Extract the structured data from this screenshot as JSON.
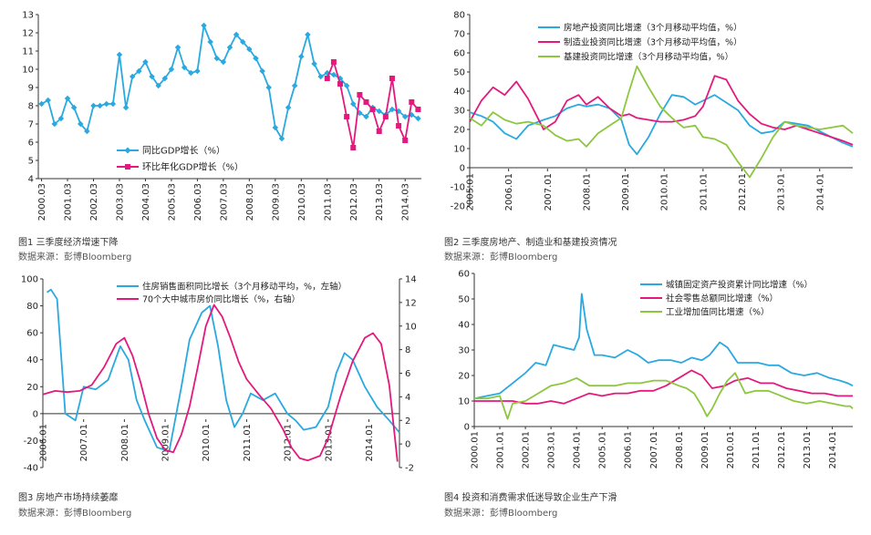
{
  "captions": {
    "c1": "图1 三季度经济增速下降",
    "c2": "图2 三季度房地产、制造业和基建投资情况",
    "c3": "图3 房地产市场持续萎靡",
    "c4": "图4 投资和消费需求低迷导致企业生产下滑"
  },
  "source_label": "数据来源：彭博Bloomberg",
  "chart_data": [
    {
      "id": "c1",
      "type": "line",
      "ylim": [
        4,
        13
      ],
      "yticks": [
        4,
        5,
        6,
        7,
        8,
        9,
        10,
        11,
        12,
        13
      ],
      "x_tick_labels": [
        "2000.03",
        "2001.03",
        "2002.03",
        "2003.03",
        "2004.03",
        "2005.03",
        "2006.03",
        "2007.03",
        "2008.03",
        "2009.03",
        "2010.03",
        "2011.03",
        "2012.03",
        "2013.03",
        "2014.03"
      ],
      "series": [
        {
          "name": "同比GDP增长（%）",
          "color": "#29A9E0",
          "marker": "diamond",
          "values": [
            8.1,
            8.3,
            7.0,
            7.3,
            8.4,
            7.9,
            7.0,
            6.6,
            8.0,
            8.0,
            8.1,
            8.1,
            10.8,
            7.9,
            9.6,
            9.9,
            10.4,
            9.6,
            9.1,
            9.5,
            10.0,
            11.2,
            10.1,
            9.8,
            9.9,
            12.4,
            11.5,
            10.6,
            10.4,
            11.2,
            11.9,
            11.5,
            11.1,
            10.6,
            9.9,
            9.0,
            6.8,
            6.2,
            7.9,
            9.1,
            10.7,
            11.9,
            10.3,
            9.6,
            9.8,
            9.7,
            9.5,
            9.1,
            8.1,
            7.6,
            7.4,
            7.9,
            7.7,
            7.5,
            7.8,
            7.7,
            7.4,
            7.5,
            7.3
          ]
        },
        {
          "name": "环比年化GDP增长（%）",
          "color": "#E3197D",
          "marker": "square",
          "start_index": 44,
          "values": [
            9.5,
            10.4,
            9.2,
            7.4,
            5.7,
            8.6,
            8.2,
            7.8,
            6.6,
            7.4,
            9.5,
            6.9,
            6.1,
            8.2,
            7.8
          ]
        }
      ]
    },
    {
      "id": "c2",
      "type": "line",
      "ylim": [
        -20,
        80
      ],
      "yticks": [
        -20,
        -10,
        0,
        10,
        20,
        30,
        40,
        50,
        60,
        70,
        80
      ],
      "x_tick_labels": [
        "2005.01",
        "2006.01",
        "2007.01",
        "2008.01",
        "2009.01",
        "2010.01",
        "2011.01",
        "2012.01",
        "2013.01",
        "2014.01"
      ],
      "x_range": [
        2005.0,
        2014.85
      ],
      "series": [
        {
          "name": "房地产投资同比增速（3个月移动平均值，%）",
          "color": "#29A9E0",
          "x": [
            2005.0,
            2005.3,
            2005.6,
            2005.9,
            2006.2,
            2006.5,
            2006.9,
            2007.2,
            2007.5,
            2007.8,
            2008.0,
            2008.3,
            2008.6,
            2008.9,
            2009.1,
            2009.3,
            2009.6,
            2009.9,
            2010.2,
            2010.5,
            2010.8,
            2011.0,
            2011.3,
            2011.6,
            2011.9,
            2012.2,
            2012.5,
            2012.8,
            2013.1,
            2013.4,
            2013.7,
            2014.0,
            2014.3,
            2014.6,
            2014.85
          ],
          "values": [
            29,
            27,
            24,
            18,
            15,
            22,
            25,
            27,
            31,
            33,
            32,
            33,
            31,
            25,
            12,
            7,
            16,
            28,
            38,
            37,
            33,
            35,
            38,
            34,
            30,
            22,
            18,
            19,
            24,
            23,
            22,
            19,
            16,
            13,
            11
          ]
        },
        {
          "name": "制造业投资同比增速（3个月移动平均值，%）",
          "color": "#E3197D",
          "x": [
            2005.0,
            2005.3,
            2005.6,
            2005.9,
            2006.2,
            2006.5,
            2006.9,
            2007.2,
            2007.5,
            2007.8,
            2008.0,
            2008.3,
            2008.6,
            2008.9,
            2009.1,
            2009.3,
            2009.6,
            2009.9,
            2010.2,
            2010.5,
            2010.8,
            2011.0,
            2011.3,
            2011.6,
            2011.9,
            2012.2,
            2012.5,
            2012.8,
            2013.1,
            2013.4,
            2013.7,
            2014.0,
            2014.3,
            2014.6,
            2014.85
          ],
          "values": [
            24,
            35,
            42,
            38,
            45,
            36,
            20,
            24,
            35,
            38,
            33,
            37,
            31,
            27,
            28,
            26,
            25,
            24,
            24,
            25,
            27,
            32,
            48,
            46,
            35,
            28,
            23,
            21,
            20,
            22,
            20,
            18,
            16,
            14,
            12
          ]
        },
        {
          "name": "基建投资同比增速（3个月移动平均值，%）",
          "color": "#8DC63F",
          "x": [
            2005.0,
            2005.3,
            2005.6,
            2005.9,
            2006.2,
            2006.5,
            2006.9,
            2007.2,
            2007.5,
            2007.8,
            2008.0,
            2008.3,
            2008.6,
            2008.9,
            2009.1,
            2009.3,
            2009.6,
            2009.9,
            2010.2,
            2010.5,
            2010.8,
            2011.0,
            2011.3,
            2011.6,
            2011.9,
            2012.2,
            2012.5,
            2012.8,
            2013.1,
            2013.4,
            2013.7,
            2014.0,
            2014.3,
            2014.6,
            2014.85
          ],
          "values": [
            26,
            22,
            29,
            25,
            23,
            24,
            22,
            17,
            14,
            15,
            11,
            18,
            22,
            26,
            40,
            53,
            42,
            32,
            26,
            21,
            22,
            16,
            15,
            12,
            3,
            -5,
            5,
            16,
            24,
            22,
            21,
            20,
            21,
            22,
            18
          ]
        }
      ]
    },
    {
      "id": "c3",
      "type": "line",
      "ylim_left": [
        -40,
        100
      ],
      "ylim_right": [
        -2,
        14
      ],
      "yticks_left": [
        -40,
        -20,
        0,
        20,
        40,
        60,
        80,
        100
      ],
      "yticks_right": [
        -2,
        0,
        2,
        4,
        6,
        8,
        10,
        12,
        14
      ],
      "x_tick_labels": [
        "2006.01",
        "2007.01",
        "2008.01",
        "2009.01",
        "2010.01",
        "2011.01",
        "2012.01",
        "2013.01",
        "2014.01"
      ],
      "x_range": [
        2006.0,
        2014.75
      ],
      "series": [
        {
          "name": "住房销售面积同比增长（3个月移动平均，%，左轴）",
          "color": "#29A9E0",
          "axis": "left",
          "x": [
            2006.1,
            2006.2,
            2006.35,
            2006.55,
            2006.8,
            2007.0,
            2007.3,
            2007.6,
            2007.9,
            2008.1,
            2008.3,
            2008.5,
            2008.8,
            2009.1,
            2009.4,
            2009.6,
            2009.9,
            2010.1,
            2010.3,
            2010.5,
            2010.7,
            2010.9,
            2011.1,
            2011.4,
            2011.7,
            2012.0,
            2012.2,
            2012.4,
            2012.7,
            2013.0,
            2013.2,
            2013.4,
            2013.6,
            2013.9,
            2014.2,
            2014.5,
            2014.75
          ],
          "values": [
            90,
            92,
            85,
            0,
            -5,
            20,
            18,
            25,
            50,
            40,
            10,
            -5,
            -25,
            -28,
            20,
            55,
            75,
            80,
            50,
            10,
            -10,
            0,
            15,
            10,
            15,
            0,
            -5,
            -12,
            -10,
            5,
            30,
            45,
            40,
            20,
            5,
            -5,
            -14
          ]
        },
        {
          "name": "70个大中城市房价同比增长（%，右轴）",
          "color": "#E3197D",
          "axis": "right",
          "x": [
            2006.0,
            2006.3,
            2006.6,
            2006.9,
            2007.2,
            2007.5,
            2007.8,
            2008.0,
            2008.2,
            2008.4,
            2008.6,
            2008.8,
            2009.0,
            2009.2,
            2009.4,
            2009.6,
            2009.8,
            2010.0,
            2010.2,
            2010.4,
            2010.6,
            2010.8,
            2011.0,
            2011.3,
            2011.6,
            2011.9,
            2012.1,
            2012.3,
            2012.5,
            2012.8,
            2013.0,
            2013.3,
            2013.6,
            2013.9,
            2014.1,
            2014.3,
            2014.5,
            2014.7
          ],
          "values": [
            4.2,
            4.5,
            4.4,
            4.5,
            5.0,
            6.5,
            8.5,
            9.0,
            7.5,
            5.2,
            2.5,
            0.5,
            -0.5,
            -0.7,
            0.8,
            3.2,
            6.5,
            10.0,
            11.8,
            10.8,
            9.0,
            7.0,
            5.5,
            4.2,
            3.0,
            1.2,
            -0.3,
            -1.2,
            -1.4,
            -1.0,
            0.5,
            4.0,
            7.0,
            9.0,
            9.4,
            8.5,
            5.0,
            -1.5
          ]
        }
      ]
    },
    {
      "id": "c4",
      "type": "line",
      "ylim": [
        0,
        60
      ],
      "yticks": [
        0,
        10,
        20,
        30,
        40,
        50,
        60
      ],
      "x_tick_labels": [
        "2000.01",
        "2001.01",
        "2002.01",
        "2003.01",
        "2004.01",
        "2005.01",
        "2006.01",
        "2007.01",
        "2008.01",
        "2009.01",
        "2010.01",
        "2011.01",
        "2012.01",
        "2013.01",
        "2014.01"
      ],
      "x_range": [
        2000.0,
        2014.8
      ],
      "series": [
        {
          "name": "城镇固定资产投资累计同比增速（%）",
          "color": "#29A9E0",
          "x": [
            2000.0,
            2000.5,
            2001.0,
            2001.5,
            2002.0,
            2002.4,
            2002.8,
            2003.1,
            2003.5,
            2003.9,
            2004.1,
            2004.2,
            2004.4,
            2004.7,
            2005.0,
            2005.5,
            2006.0,
            2006.4,
            2006.8,
            2007.2,
            2007.7,
            2008.1,
            2008.5,
            2008.9,
            2009.2,
            2009.6,
            2009.9,
            2010.3,
            2010.7,
            2011.1,
            2011.5,
            2011.9,
            2012.4,
            2012.9,
            2013.4,
            2013.9,
            2014.3,
            2014.6,
            2014.8
          ],
          "values": [
            11,
            12,
            13,
            17,
            21,
            25,
            24,
            32,
            31,
            30,
            35,
            52,
            38,
            28,
            28,
            27,
            30,
            28,
            25,
            26,
            26,
            25,
            27,
            26,
            28,
            33,
            31,
            25,
            25,
            25,
            24,
            24,
            21,
            20,
            21,
            19,
            18,
            17,
            16
          ]
        },
        {
          "name": "社会零售总额同比增速（%）",
          "color": "#E3197D",
          "x": [
            2000.0,
            2000.5,
            2001.0,
            2001.5,
            2002.0,
            2002.5,
            2003.0,
            2003.5,
            2004.0,
            2004.5,
            2005.0,
            2005.5,
            2006.0,
            2006.5,
            2007.0,
            2007.5,
            2008.0,
            2008.5,
            2008.9,
            2009.3,
            2009.8,
            2010.2,
            2010.7,
            2011.2,
            2011.7,
            2012.2,
            2012.7,
            2013.2,
            2013.7,
            2014.2,
            2014.6,
            2014.8
          ],
          "values": [
            10,
            10,
            10,
            10,
            9,
            9,
            10,
            9,
            11,
            13,
            12,
            13,
            13,
            14,
            14,
            16,
            19,
            22,
            20,
            15,
            16,
            18,
            19,
            17,
            17,
            15,
            14,
            13,
            13,
            12,
            12,
            12
          ]
        },
        {
          "name": "工业增加值同比增速（%）",
          "color": "#8DC63F",
          "x": [
            2000.0,
            2000.5,
            2001.0,
            2001.3,
            2001.5,
            2002.0,
            2002.5,
            2003.0,
            2003.5,
            2004.0,
            2004.5,
            2005.0,
            2005.5,
            2006.0,
            2006.5,
            2007.0,
            2007.5,
            2008.0,
            2008.3,
            2008.6,
            2008.9,
            2009.1,
            2009.3,
            2009.6,
            2009.9,
            2010.2,
            2010.6,
            2011.0,
            2011.5,
            2012.0,
            2012.5,
            2013.0,
            2013.5,
            2014.0,
            2014.5,
            2014.7,
            2014.8
          ],
          "values": [
            11,
            11,
            12,
            3,
            9,
            10,
            13,
            16,
            17,
            19,
            16,
            16,
            16,
            17,
            17,
            18,
            18,
            16,
            15,
            13,
            8,
            4,
            7,
            13,
            18,
            21,
            13,
            14,
            14,
            12,
            10,
            9,
            10,
            9,
            8,
            8,
            7
          ]
        }
      ]
    }
  ]
}
